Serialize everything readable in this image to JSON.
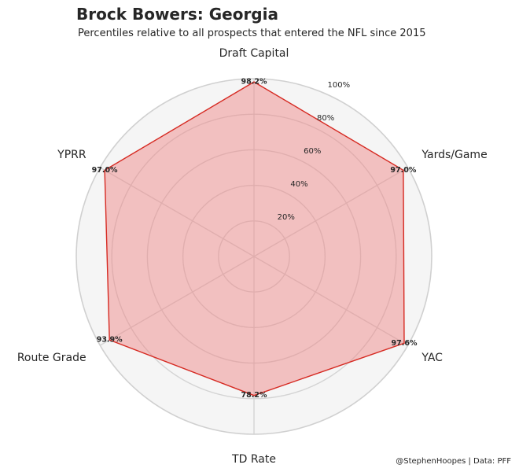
{
  "header": {
    "title": "Brock Bowers: Georgia",
    "subtitle": "Percentiles relative to all prospects that entered the NFL since 2015"
  },
  "footer": {
    "credit": "@StephenHoopes | Data: PFF"
  },
  "chart_data": {
    "type": "radar",
    "title": "Brock Bowers: Georgia",
    "subtitle": "Percentiles relative to all prospects that entered the NFL since 2015",
    "categories": [
      "Draft Capital",
      "Yards/Game",
      "YAC",
      "TD Rate",
      "Route Grade",
      "YPRR"
    ],
    "values": [
      98.2,
      97.0,
      97.6,
      78.2,
      93.9,
      97.0
    ],
    "value_labels": [
      "98.2%",
      "97.0%",
      "97.6%",
      "78.2%",
      "93.9%",
      "97.0%"
    ],
    "rlim": [
      0,
      100
    ],
    "rticks": [
      20,
      40,
      60,
      80,
      100
    ],
    "rtick_labels": [
      "20%",
      "40%",
      "60%",
      "80%",
      "100%"
    ],
    "grid": true,
    "colors": {
      "line": "#d62a22",
      "fill": "#f08080",
      "background": "#f5f5f5",
      "grid": "#d4d4d4"
    }
  }
}
